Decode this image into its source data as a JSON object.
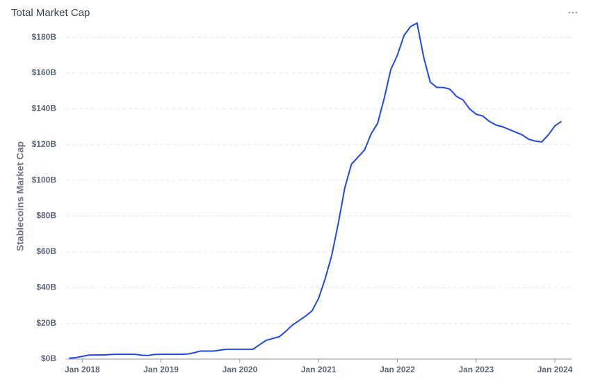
{
  "chart_data": {
    "type": "line",
    "title": "Total Market Cap",
    "y_label": "Stablecoins Market Cap",
    "x": [
      "2017-11",
      "2017-12",
      "2018-01",
      "2018-02",
      "2018-03",
      "2018-04",
      "2018-05",
      "2018-06",
      "2018-07",
      "2018-08",
      "2018-09",
      "2018-10",
      "2018-11",
      "2018-12",
      "2019-01",
      "2019-02",
      "2019-03",
      "2019-04",
      "2019-05",
      "2019-06",
      "2019-07",
      "2019-08",
      "2019-09",
      "2019-10",
      "2019-11",
      "2019-12",
      "2020-01",
      "2020-02",
      "2020-03",
      "2020-04",
      "2020-05",
      "2020-06",
      "2020-07",
      "2020-08",
      "2020-09",
      "2020-10",
      "2020-11",
      "2020-12",
      "2021-01",
      "2021-02",
      "2021-03",
      "2021-04",
      "2021-05",
      "2021-06",
      "2021-07",
      "2021-08",
      "2021-09",
      "2021-10",
      "2021-11",
      "2021-12",
      "2022-01",
      "2022-02",
      "2022-03",
      "2022-04",
      "2022-05",
      "2022-06",
      "2022-07",
      "2022-08",
      "2022-09",
      "2022-10",
      "2022-11",
      "2022-12",
      "2023-01",
      "2023-02",
      "2023-03",
      "2023-04",
      "2023-05",
      "2023-06",
      "2023-07",
      "2023-08",
      "2023-09",
      "2023-10",
      "2023-11",
      "2023-12",
      "2024-01",
      "2024-02"
    ],
    "series": [
      {
        "name": "Stablecoins Market Cap",
        "color": "#1f45f0",
        "values": [
          0.5,
          0.8,
          1.5,
          2.2,
          2.3,
          2.3,
          2.5,
          2.7,
          2.7,
          2.7,
          2.7,
          2.2,
          2.0,
          2.6,
          2.7,
          2.7,
          2.7,
          2.7,
          2.8,
          3.5,
          4.5,
          4.5,
          4.5,
          5.0,
          5.5,
          5.5,
          5.5,
          5.5,
          5.5,
          8,
          10.5,
          11.5,
          12.5,
          15.5,
          19,
          21.5,
          24,
          27,
          34,
          45,
          58,
          76,
          96,
          109,
          113,
          117,
          126,
          132,
          146,
          162,
          170,
          181,
          186,
          188,
          169,
          155,
          152,
          152,
          151,
          147,
          145,
          140,
          137,
          136,
          133,
          131,
          130,
          128.5,
          127,
          125.5,
          123,
          122,
          121.5,
          125.5,
          130.5,
          133
        ]
      }
    ],
    "xlim": [
      "2017-10",
      "2024-03"
    ],
    "xticks": [
      {
        "value": "2018-01",
        "label": "Jan 2018"
      },
      {
        "value": "2019-01",
        "label": "Jan 2019"
      },
      {
        "value": "2020-01",
        "label": "Jan 2020"
      },
      {
        "value": "2021-01",
        "label": "Jan 2021"
      },
      {
        "value": "2022-01",
        "label": "Jan 2022"
      },
      {
        "value": "2023-01",
        "label": "Jan 2023"
      },
      {
        "value": "2024-01",
        "label": "Jan 2024"
      }
    ],
    "ylim": [
      0,
      190
    ],
    "yticks": [
      {
        "value": 0,
        "label": "$0B"
      },
      {
        "value": 20,
        "label": "$20B"
      },
      {
        "value": 40,
        "label": "$40B"
      },
      {
        "value": 60,
        "label": "$60B"
      },
      {
        "value": 80,
        "label": "$80B"
      },
      {
        "value": 100,
        "label": "$100B"
      },
      {
        "value": 120,
        "label": "$120B"
      },
      {
        "value": 140,
        "label": "$140B"
      },
      {
        "value": 160,
        "label": "$160B"
      },
      {
        "value": 180,
        "label": "$180B"
      }
    ],
    "grid": true
  }
}
